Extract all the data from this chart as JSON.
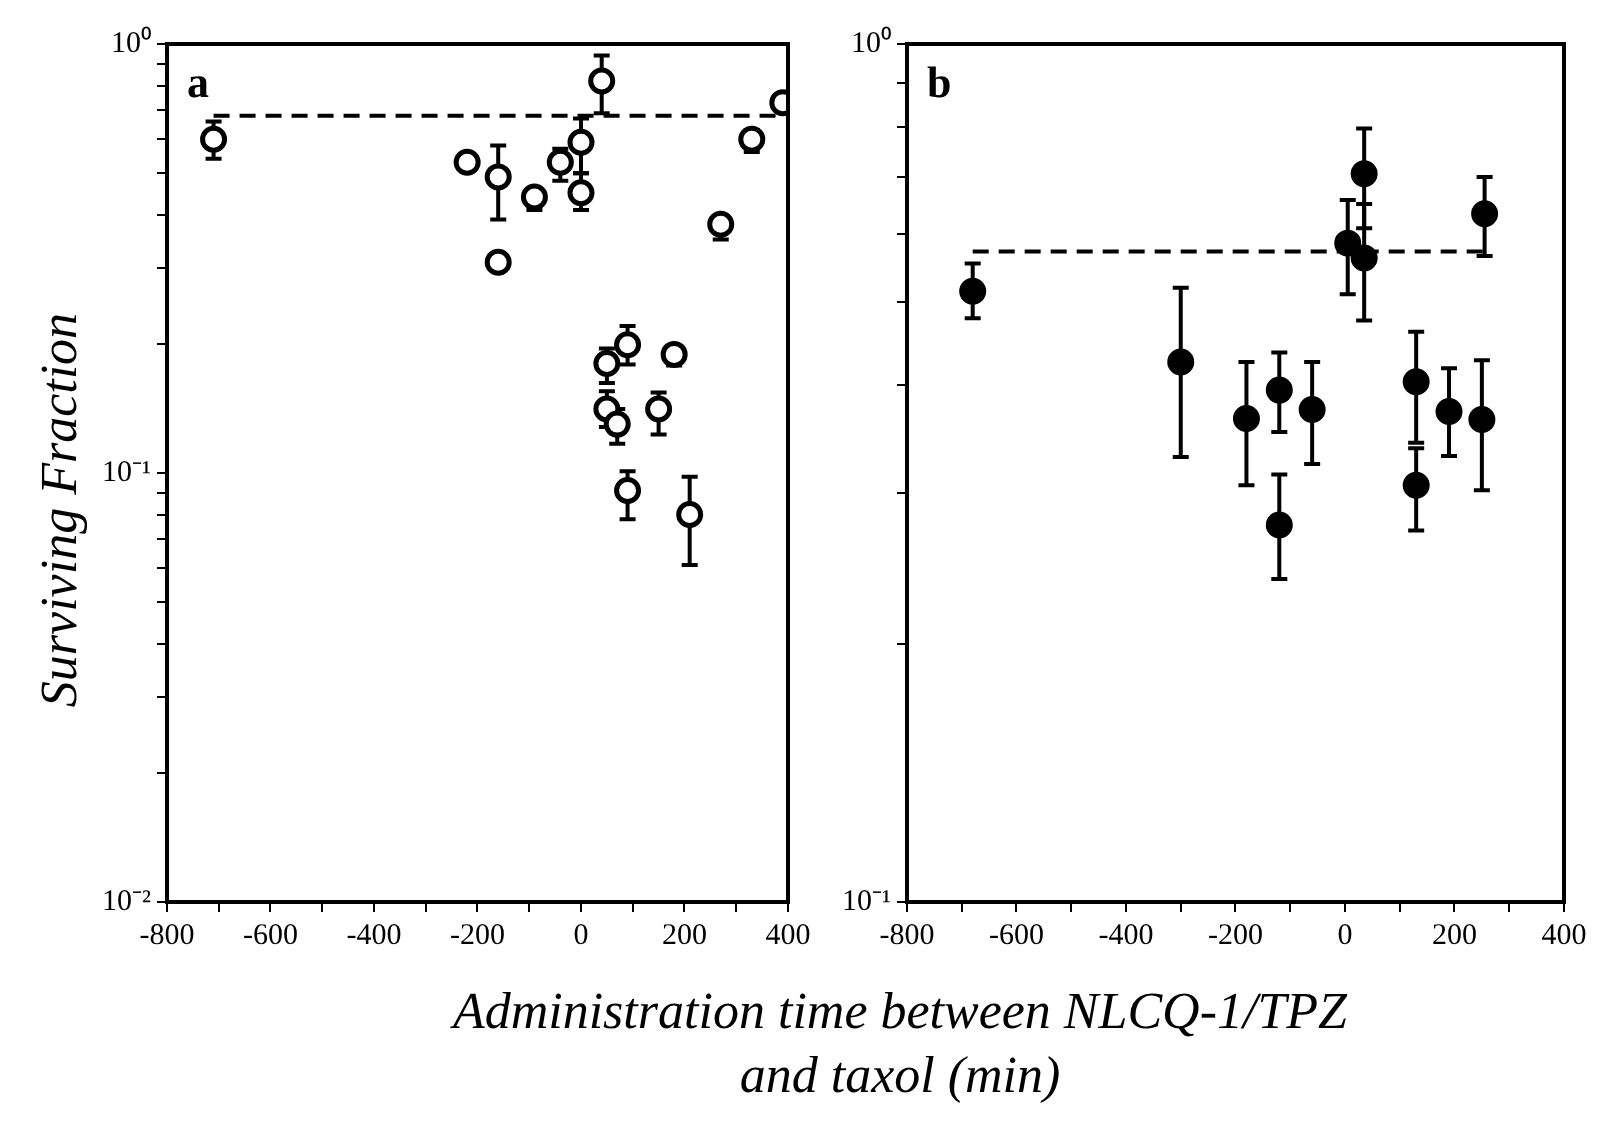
{
  "chart_data": [
    {
      "type": "scatter",
      "title": "a",
      "ylabel": "Surviving Fraction",
      "xlabel": "Administration time between NLCQ-1/TPZ and taxol (min)",
      "log": "y",
      "grid": false,
      "legend": false,
      "marker": "circle",
      "xlim": [
        -800,
        400
      ],
      "xticks": [
        -800,
        {
          "value": -700,
          "label": null
        },
        -600,
        {
          "value": -500,
          "label": null
        },
        -400,
        {
          "value": -300,
          "label": null
        },
        -200,
        {
          "value": -100,
          "label": null
        },
        0,
        {
          "value": 100,
          "label": null
        },
        200,
        {
          "value": 300,
          "label": null
        },
        400
      ],
      "ylim": [
        0.01,
        1
      ],
      "yticks": [
        {
          "value": 0.01,
          "label": "10⁻²"
        },
        {
          "value": 0.02,
          "label": null
        },
        {
          "value": 0.03,
          "label": null
        },
        {
          "value": 0.04,
          "label": null
        },
        {
          "value": 0.05,
          "label": null
        },
        {
          "value": 0.06,
          "label": null
        },
        {
          "value": 0.07,
          "label": null
        },
        {
          "value": 0.08,
          "label": null
        },
        {
          "value": 0.09,
          "label": null
        },
        {
          "value": 0.1,
          "label": "10⁻¹"
        },
        {
          "value": 0.2,
          "label": null
        },
        {
          "value": 0.3,
          "label": null
        },
        {
          "value": 0.4,
          "label": null
        },
        {
          "value": 0.5,
          "label": null
        },
        {
          "value": 0.6,
          "label": null
        },
        {
          "value": 0.7,
          "label": null
        },
        {
          "value": 0.8,
          "label": null
        },
        {
          "value": 0.9,
          "label": null
        },
        {
          "value": 1,
          "label": "10⁰"
        }
      ],
      "ref_lines": [
        {
          "axis": "y",
          "value": 0.68,
          "line_style": "dashed",
          "color": "#000000"
        }
      ],
      "series": [
        {
          "color": "#000000",
          "x": [
            -710,
            -220,
            -160,
            -160,
            -90,
            -40,
            0,
            0,
            40,
            50,
            50,
            70,
            90,
            90,
            150,
            180,
            210,
            270,
            330,
            390
          ],
          "values": [
            0.6,
            0.53,
            0.49,
            0.31,
            0.44,
            0.53,
            0.59,
            0.45,
            0.82,
            0.18,
            0.141,
            0.13,
            0.199,
            0.091,
            0.141,
            0.189,
            0.08,
            0.38,
            0.6,
            0.73
          ],
          "errors": [
            [
              0.54,
              0.66
            ],
            null,
            [
              0.39,
              0.58
            ],
            null,
            [
              0.41,
              0.46
            ],
            [
              0.48,
              0.57
            ],
            [
              0.5,
              0.67
            ],
            [
              0.41,
              0.5
            ],
            [
              0.69,
              0.94
            ],
            [
              0.162,
              0.195
            ],
            [
              0.128,
              0.155
            ],
            [
              0.117,
              0.141
            ],
            [
              0.179,
              0.22
            ],
            [
              0.078,
              0.101
            ],
            [
              0.123,
              0.154
            ],
            [
              0.178,
              0.198
            ],
            [
              0.061,
              0.098
            ],
            [
              0.35,
              0.38
            ],
            [
              0.56,
              0.63
            ],
            null
          ]
        }
      ]
    },
    {
      "type": "scatter",
      "title": "b",
      "log": "y",
      "grid": false,
      "legend": false,
      "marker": "circle",
      "xlim": [
        -800,
        400
      ],
      "xticks": [
        -800,
        {
          "value": -700,
          "label": null
        },
        -600,
        {
          "value": -500,
          "label": null
        },
        -400,
        {
          "value": -300,
          "label": null
        },
        -200,
        {
          "value": -100,
          "label": null
        },
        0,
        {
          "value": 100,
          "label": null
        },
        200,
        {
          "value": 300,
          "label": null
        },
        400
      ],
      "ylim": [
        0.1,
        1
      ],
      "yticks": [
        {
          "value": 0.1,
          "label": "10⁻¹"
        },
        {
          "value": 0.2,
          "label": null
        },
        {
          "value": 0.3,
          "label": null
        },
        {
          "value": 0.4,
          "label": null
        },
        {
          "value": 0.5,
          "label": null
        },
        {
          "value": 0.6,
          "label": null
        },
        {
          "value": 0.7,
          "label": null
        },
        {
          "value": 0.8,
          "label": null
        },
        {
          "value": 0.9,
          "label": null
        },
        {
          "value": 1,
          "label": "10⁰"
        }
      ],
      "ref_lines": [
        {
          "axis": "y",
          "value": 0.573,
          "line_style": "dashed",
          "color": "#000000"
        }
      ],
      "series": [
        {
          "color": "#000000",
          "x": [
            -680,
            -300,
            -180,
            -120,
            -120,
            -60,
            5,
            35,
            35,
            130,
            130,
            190,
            250,
            255
          ],
          "values": [
            0.515,
            0.426,
            0.366,
            0.395,
            0.275,
            0.375,
            0.586,
            0.706,
            0.563,
            0.404,
            0.306,
            0.373,
            0.365,
            0.634
          ],
          "errors": [
            [
              0.479,
              0.555
            ],
            [
              0.33,
              0.52
            ],
            [
              0.306,
              0.426
            ],
            [
              0.353,
              0.437
            ],
            [
              0.238,
              0.315
            ],
            [
              0.324,
              0.426
            ],
            [
              0.511,
              0.658
            ],
            [
              0.61,
              0.797
            ],
            [
              0.476,
              0.651
            ],
            [
              0.343,
              0.462
            ],
            [
              0.271,
              0.338
            ],
            [
              0.331,
              0.419
            ],
            [
              0.302,
              0.428
            ],
            [
              0.566,
              0.7
            ]
          ]
        }
      ]
    }
  ]
}
